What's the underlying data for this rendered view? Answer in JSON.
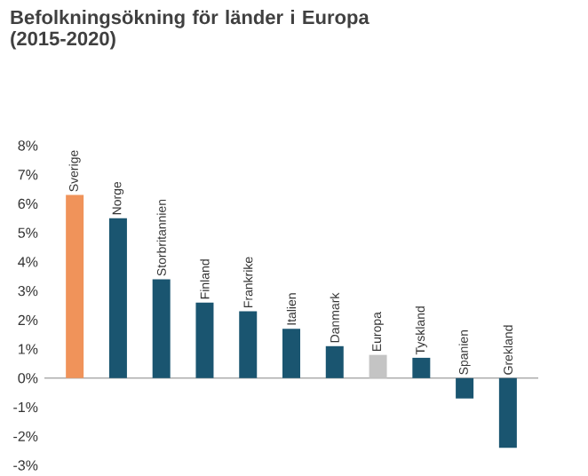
{
  "chart_data": {
    "type": "bar",
    "title": "Befolkningsökning för länder i Europa (2015-2020)",
    "categories": [
      "Sverige",
      "Norge",
      "Storbritannien",
      "Finland",
      "Frankrike",
      "Italien",
      "Danmark",
      "Europa",
      "Tyskland",
      "Spanien",
      "Grekland"
    ],
    "values": [
      6.3,
      5.5,
      3.4,
      2.6,
      2.3,
      1.7,
      1.1,
      0.8,
      0.7,
      -0.7,
      -2.4
    ],
    "colors": [
      "#f0935a",
      "#1a5570",
      "#1a5570",
      "#1a5570",
      "#1a5570",
      "#1a5570",
      "#1a5570",
      "#c4c4c4",
      "#1a5570",
      "#1a5570",
      "#1a5570"
    ],
    "ylim": [
      -3,
      8
    ],
    "yticks": [
      {
        "value": -3,
        "label": "-3%"
      },
      {
        "value": -2,
        "label": "-2%"
      },
      {
        "value": -1,
        "label": "-1%"
      },
      {
        "value": 0,
        "label": "0%"
      },
      {
        "value": 1,
        "label": "1%"
      },
      {
        "value": 2,
        "label": "2%"
      },
      {
        "value": 3,
        "label": "3%"
      },
      {
        "value": 4,
        "label": "4%"
      },
      {
        "value": 5,
        "label": "5%"
      },
      {
        "value": 6,
        "label": "6%"
      },
      {
        "value": 7,
        "label": "7%"
      },
      {
        "value": 8,
        "label": "8%"
      }
    ],
    "grid": false
  }
}
